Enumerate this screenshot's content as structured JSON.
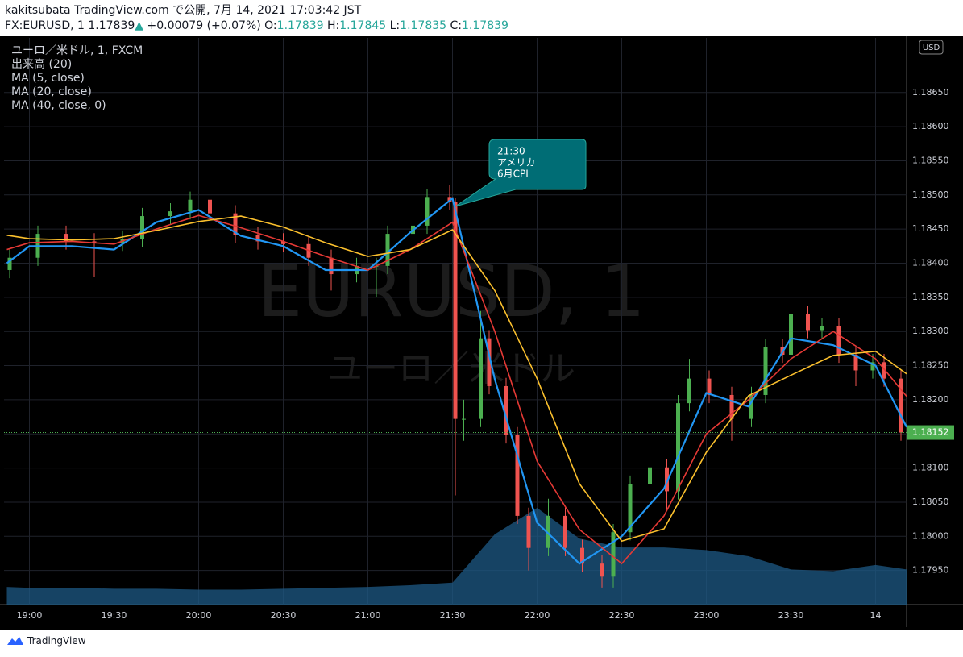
{
  "header": {
    "line1": "kakitsubata TradingView.com で公開, 7月 14, 2021 17:03:42 JST",
    "symbol": "FX:EURUSD, 1",
    "price": "1.17839",
    "arrow": "▲",
    "change": "+0.00079 (+0.07%)",
    "o_label": "O:",
    "o": "1.17839",
    "h_label": "H:",
    "h": "1.17845",
    "l_label": "L:",
    "l": "1.17835",
    "c_label": "C:",
    "c": "1.17839"
  },
  "footer": {
    "brand": "TradingView"
  },
  "chart_data": {
    "type": "candlestick",
    "symbol_title": "ユーロ／米ドル, 1, FXCM",
    "watermark": [
      "EURUSD, 1",
      "ユーロ／米ドル"
    ],
    "currency": "USD",
    "annotation": {
      "lines": [
        "21:30",
        "アメリカ",
        "6月CPI"
      ]
    },
    "up_color": "#4caf50",
    "down_color": "#ef5350",
    "xlim": [
      -9,
      311
    ],
    "ylim": [
      1.179,
      1.1873
    ],
    "xticks": [
      {
        "value": 0,
        "label": "19:00"
      },
      {
        "value": 30,
        "label": "19:30"
      },
      {
        "value": 60,
        "label": "20:00"
      },
      {
        "value": 90,
        "label": "20:30"
      },
      {
        "value": 120,
        "label": "21:00"
      },
      {
        "value": 150,
        "label": "21:30"
      },
      {
        "value": 180,
        "label": "22:00"
      },
      {
        "value": 210,
        "label": "22:30"
      },
      {
        "value": 240,
        "label": "23:00"
      },
      {
        "value": 270,
        "label": "23:30"
      },
      {
        "value": 300,
        "label": "14"
      }
    ],
    "yticks": [
      {
        "value": 1.1795,
        "label": "1.17950"
      },
      {
        "value": 1.18,
        "label": "1.18000"
      },
      {
        "value": 1.1805,
        "label": "1.18050"
      },
      {
        "value": 1.181,
        "label": "1.18100"
      },
      {
        "value": 1.1815,
        "label": "1.18150"
      },
      {
        "value": 1.182,
        "label": "1.18200"
      },
      {
        "value": 1.1825,
        "label": "1.18250"
      },
      {
        "value": 1.183,
        "label": "1.18300"
      },
      {
        "value": 1.1835,
        "label": "1.18350"
      },
      {
        "value": 1.184,
        "label": "1.18400"
      },
      {
        "value": 1.1845,
        "label": "1.18450"
      },
      {
        "value": 1.185,
        "label": "1.18500"
      },
      {
        "value": 1.1855,
        "label": "1.18550"
      },
      {
        "value": 1.186,
        "label": "1.18600"
      },
      {
        "value": 1.1865,
        "label": "1.18650"
      }
    ],
    "grid": true,
    "last_price": 1.18152,
    "x": [
      -7,
      3,
      13,
      23,
      33,
      40,
      50,
      57,
      64,
      73,
      81,
      90,
      99,
      107,
      116,
      123,
      127,
      136,
      141,
      149,
      151,
      154,
      160,
      163,
      169,
      173,
      177,
      184,
      190,
      196,
      203,
      207,
      213,
      220,
      226,
      230,
      234,
      241,
      249,
      256,
      261,
      267,
      270,
      276,
      281,
      287,
      293,
      299,
      303,
      309
    ],
    "open": [
      1.1839,
      1.18408,
      1.18443,
      1.18432,
      1.1843,
      1.18436,
      1.18469,
      1.18476,
      1.18493,
      1.18473,
      1.18441,
      1.18432,
      1.18428,
      1.18408,
      1.18384,
      1.18396,
      1.18396,
      1.18443,
      1.18455,
      1.18497,
      1.1849,
      1.18172,
      1.18172,
      1.1829,
      1.1822,
      1.18148,
      1.1803,
      1.17983,
      1.1803,
      1.17983,
      1.1796,
      1.17941,
      1.18006,
      1.18077,
      1.18101,
      1.18066,
      1.18195,
      1.18231,
      1.18207,
      1.18172,
      1.18207,
      1.18277,
      1.18266,
      1.18326,
      1.18302,
      1.18308,
      1.18266,
      1.18243,
      1.18255,
      1.18231
    ],
    "high": [
      1.1842,
      1.18455,
      1.18455,
      1.18444,
      1.18448,
      1.18481,
      1.18488,
      1.18505,
      1.18505,
      1.18485,
      1.18453,
      1.18444,
      1.1844,
      1.1842,
      1.18408,
      1.18408,
      1.18455,
      1.18467,
      1.18509,
      1.18515,
      1.18495,
      1.182,
      1.1833,
      1.18302,
      1.18232,
      1.1816,
      1.18042,
      1.18055,
      1.18042,
      1.17995,
      1.17972,
      1.18018,
      1.18089,
      1.18125,
      1.18113,
      1.18207,
      1.1826,
      1.18243,
      1.18219,
      1.18219,
      1.18289,
      1.18289,
      1.18338,
      1.18338,
      1.1832,
      1.1832,
      1.18278,
      1.18267,
      1.18267,
      1.18243
    ],
    "low": [
      1.18378,
      1.18396,
      1.1842,
      1.1838,
      1.18418,
      1.18424,
      1.18457,
      1.18464,
      1.18461,
      1.18429,
      1.1842,
      1.18416,
      1.18396,
      1.1836,
      1.18372,
      1.1835,
      1.18384,
      1.18431,
      1.18443,
      1.18478,
      1.1806,
      1.1814,
      1.1816,
      1.18208,
      1.18136,
      1.18018,
      1.1795,
      1.17971,
      1.17971,
      1.17948,
      1.17925,
      1.17925,
      1.17994,
      1.18065,
      1.1804,
      1.18054,
      1.18183,
      1.18195,
      1.1814,
      1.1816,
      1.18195,
      1.18254,
      1.18254,
      1.1829,
      1.1829,
      1.18254,
      1.1822,
      1.18231,
      1.18219,
      1.1814
    ],
    "close": [
      1.18408,
      1.18443,
      1.18432,
      1.1843,
      1.18436,
      1.18469,
      1.18476,
      1.18493,
      1.18473,
      1.18441,
      1.18432,
      1.18428,
      1.18408,
      1.18384,
      1.18396,
      1.18396,
      1.18443,
      1.18455,
      1.18497,
      1.1849,
      1.18172,
      1.18172,
      1.1829,
      1.1822,
      1.18148,
      1.1803,
      1.17983,
      1.1803,
      1.17983,
      1.1796,
      1.17941,
      1.18006,
      1.18077,
      1.18101,
      1.18066,
      1.18195,
      1.18231,
      1.18207,
      1.18172,
      1.18207,
      1.18277,
      1.18266,
      1.18326,
      1.18302,
      1.18308,
      1.18266,
      1.18243,
      1.18255,
      1.18231,
      1.18152
    ],
    "volume": {
      "name": "出来高 (20)",
      "color": "#1e5a85",
      "x": [
        -8,
        0,
        15,
        30,
        45,
        60,
        75,
        90,
        105,
        120,
        135,
        150,
        165,
        180,
        195,
        210,
        225,
        240,
        255,
        270,
        285,
        300,
        311
      ],
      "values": [
        20,
        19,
        19,
        18,
        18,
        17,
        17,
        18,
        19,
        20,
        22,
        25,
        80,
        110,
        75,
        65,
        65,
        62,
        55,
        40,
        38,
        45,
        40
      ]
    },
    "series": [
      {
        "name": "MA (5, close)",
        "color": "#2196f3",
        "x": [
          -8,
          0,
          15,
          30,
          45,
          60,
          75,
          90,
          105,
          120,
          135,
          150,
          165,
          180,
          195,
          210,
          225,
          240,
          255,
          270,
          285,
          300,
          311
        ],
        "values": [
          1.184,
          1.18425,
          1.18425,
          1.1842,
          1.1846,
          1.18478,
          1.1844,
          1.18425,
          1.1839,
          1.1839,
          1.18445,
          1.18495,
          1.1823,
          1.1802,
          1.1796,
          1.18,
          1.1807,
          1.1821,
          1.1819,
          1.1829,
          1.1828,
          1.1825,
          1.1816
        ]
      },
      {
        "name": "MA (20, close)",
        "color": "#e53935",
        "x": [
          -8,
          0,
          15,
          30,
          45,
          60,
          75,
          90,
          105,
          120,
          135,
          150,
          165,
          180,
          195,
          210,
          225,
          240,
          255,
          270,
          285,
          300,
          311
        ],
        "values": [
          1.1842,
          1.1843,
          1.18432,
          1.18428,
          1.1845,
          1.1847,
          1.18452,
          1.18432,
          1.1841,
          1.1839,
          1.1842,
          1.1846,
          1.183,
          1.1811,
          1.1801,
          1.1796,
          1.1803,
          1.1815,
          1.182,
          1.1826,
          1.183,
          1.1826,
          1.18205
        ]
      },
      {
        "name": "MA (40, close, 0)",
        "color": "#fbc02d",
        "x": [
          -8,
          0,
          15,
          30,
          45,
          60,
          75,
          90,
          105,
          120,
          135,
          150,
          165,
          180,
          195,
          210,
          225,
          240,
          255,
          270,
          285,
          300,
          311
        ],
        "values": [
          1.18441,
          1.18436,
          1.18434,
          1.18436,
          1.18448,
          1.18461,
          1.18469,
          1.18453,
          1.1843,
          1.1841,
          1.1842,
          1.18449,
          1.1836,
          1.18231,
          1.18077,
          1.17993,
          1.18011,
          1.18123,
          1.18206,
          1.18236,
          1.18265,
          1.18271,
          1.18238
        ]
      }
    ]
  }
}
